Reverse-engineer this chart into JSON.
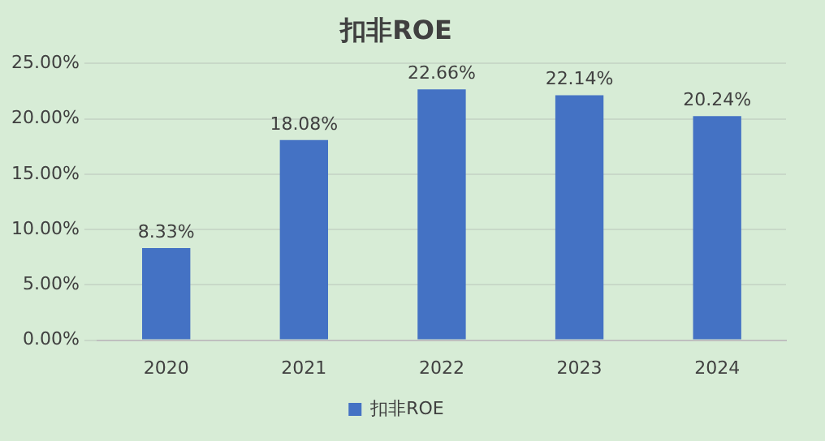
{
  "chart_data": {
    "type": "bar",
    "title": "扣非ROE",
    "categories": [
      "2020",
      "2021",
      "2022",
      "2023",
      "2024"
    ],
    "series": [
      {
        "name": "扣非ROE",
        "color": "#4472c4",
        "values": [
          8.33,
          18.08,
          22.66,
          22.14,
          20.24
        ],
        "value_labels": [
          "8.33%",
          "18.08%",
          "22.66%",
          "22.14%",
          "20.24%"
        ]
      }
    ],
    "ylim": [
      0,
      25
    ],
    "yticks": [
      {
        "value": 0,
        "label": "0.00%"
      },
      {
        "value": 5,
        "label": "5.00%"
      },
      {
        "value": 10,
        "label": "10.00%"
      },
      {
        "value": 15,
        "label": "15.00%"
      },
      {
        "value": 20,
        "label": "20.00%"
      },
      {
        "value": 25,
        "label": "25.00%"
      }
    ],
    "grid": "y",
    "legend": "bottom"
  }
}
